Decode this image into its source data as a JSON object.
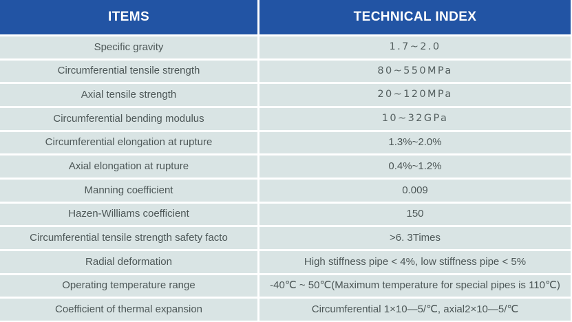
{
  "colors": {
    "header_bg": "#2254a4",
    "row_bg": "#d9e4e4",
    "header_text": "#ffffff",
    "body_text": "#4d5757"
  },
  "table": {
    "columns": [
      {
        "label": "ITEMS"
      },
      {
        "label": "TECHNICAL INDEX"
      }
    ],
    "rows": [
      {
        "item": "Specific gravity",
        "value": "1.7~2.0",
        "value_wide": true
      },
      {
        "item": "Circumferential tensile strength",
        "value": "80~550MPa",
        "value_wide": true
      },
      {
        "item": "Axial tensile strength",
        "value": "20~120MPa",
        "value_wide": true
      },
      {
        "item": "Circumferential bending modulus",
        "value": "10~32GPa",
        "value_wide": true
      },
      {
        "item": "Circumferential elongation at rupture",
        "value": "1.3%~2.0%",
        "value_wide": false
      },
      {
        "item": "Axial elongation at rupture",
        "value": "0.4%~1.2%",
        "value_wide": false
      },
      {
        "item": "Manning coefficient",
        "value": "0.009",
        "value_wide": false
      },
      {
        "item": "Hazen-Williams coefficient",
        "value": "150",
        "value_wide": false
      },
      {
        "item": "Circumferential tensile strength safety facto",
        "value": ">6. 3Times",
        "value_wide": false
      },
      {
        "item": "Radial deformation",
        "value": "High stiffness pipe < 4%, low stiffness pipe < 5%",
        "value_wide": false
      },
      {
        "item": "Operating temperature range",
        "value": "-40℃ ~ 50℃(Maximum temperature for special pipes is 110℃)",
        "value_wide": false
      },
      {
        "item": "Coefficient of thermal expansion",
        "value": "Circumferential 1×10—5/℃, axial2×10—5/℃",
        "value_wide": false
      }
    ]
  }
}
